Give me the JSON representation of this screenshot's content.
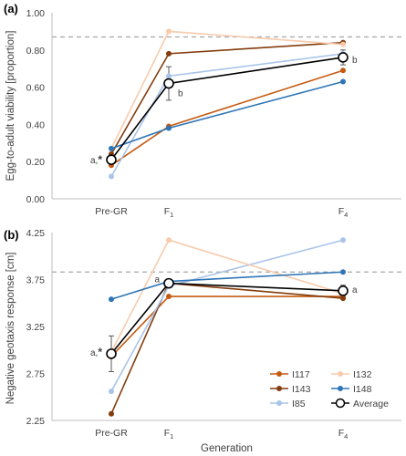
{
  "chart_data": [
    {
      "type": "line",
      "panel": "(a)",
      "ylabel": "Egg-to-adult viability [proportion]",
      "xlabel": "",
      "ylim": [
        0.0,
        1.0
      ],
      "yticks": [
        "0.00",
        "0.20",
        "0.40",
        "0.60",
        "0.80",
        "1.00"
      ],
      "ytick_values": [
        0.0,
        0.2,
        0.4,
        0.6,
        0.8,
        1.0
      ],
      "categories": [
        "Pre-GR",
        "F1",
        "F4"
      ],
      "category_labels": [
        {
          "base": "Pre-GR",
          "sub": ""
        },
        {
          "base": "F",
          "sub": "1"
        },
        {
          "base": "F",
          "sub": "4"
        }
      ],
      "reference_line": 0.87,
      "series": [
        {
          "name": "I117",
          "color": "#c55a11",
          "values": [
            0.18,
            0.39,
            0.69
          ]
        },
        {
          "name": "I143",
          "color": "#843c0c",
          "values": [
            0.24,
            0.78,
            0.84
          ]
        },
        {
          "name": "I85",
          "color": "#a9c4e8",
          "values": [
            0.12,
            0.66,
            0.78
          ]
        },
        {
          "name": "I132",
          "color": "#f8cbad",
          "values": [
            0.27,
            0.9,
            0.83
          ]
        },
        {
          "name": "I148",
          "color": "#2e75b6",
          "values": [
            0.27,
            0.38,
            0.63
          ]
        },
        {
          "name": "Average",
          "color": "#000000",
          "values": [
            0.21,
            0.62,
            0.76
          ],
          "errors": [
            0.02,
            0.09,
            0.04
          ]
        }
      ],
      "annotations": [
        {
          "text": "a,",
          "star": true,
          "category": 0,
          "y": 0.21,
          "side": "left"
        },
        {
          "text": "b",
          "category": 1,
          "y": 0.57,
          "side": "right"
        },
        {
          "text": "b",
          "category": 2,
          "y": 0.75,
          "side": "right"
        }
      ]
    },
    {
      "type": "line",
      "panel": "(b)",
      "ylabel": "Negative geotaxis response [cm]",
      "xlabel": "Generation",
      "ylim": [
        2.25,
        4.25
      ],
      "yticks": [
        "2.25",
        "2.75",
        "3.25",
        "3.75",
        "4.25"
      ],
      "ytick_values": [
        2.25,
        2.75,
        3.25,
        3.75,
        4.25
      ],
      "categories": [
        "Pre-GR",
        "F1",
        "F4"
      ],
      "category_labels": [
        {
          "base": "Pre-GR",
          "sub": ""
        },
        {
          "base": "F",
          "sub": "1"
        },
        {
          "base": "F",
          "sub": "4"
        }
      ],
      "reference_line": 3.83,
      "series": [
        {
          "name": "I117",
          "color": "#c55a11",
          "values": [
            2.93,
            3.57,
            3.57
          ]
        },
        {
          "name": "I143",
          "color": "#843c0c",
          "values": [
            2.32,
            3.71,
            3.55
          ]
        },
        {
          "name": "I85",
          "color": "#a9c4e8",
          "values": [
            2.56,
            3.68,
            4.17
          ]
        },
        {
          "name": "I132",
          "color": "#f8cbad",
          "values": [
            2.98,
            4.17,
            3.6
          ]
        },
        {
          "name": "I148",
          "color": "#2e75b6",
          "values": [
            3.54,
            3.73,
            3.83
          ]
        },
        {
          "name": "Average",
          "color": "#000000",
          "values": [
            2.96,
            3.71,
            3.63
          ],
          "errors": [
            0.19,
            0.04,
            0.06
          ]
        }
      ],
      "annotations": [
        {
          "text": "a,",
          "star": true,
          "category": 0,
          "y": 2.98,
          "side": "left"
        },
        {
          "text": "a",
          "category": 1,
          "y": 3.76,
          "side": "left"
        },
        {
          "text": "a",
          "category": 2,
          "y": 3.65,
          "side": "right"
        }
      ],
      "legend": {
        "placement": "bottom-right",
        "columns": [
          [
            "I117",
            "I143",
            "I85"
          ],
          [
            "I132",
            "I148",
            "Average"
          ]
        ]
      }
    }
  ]
}
